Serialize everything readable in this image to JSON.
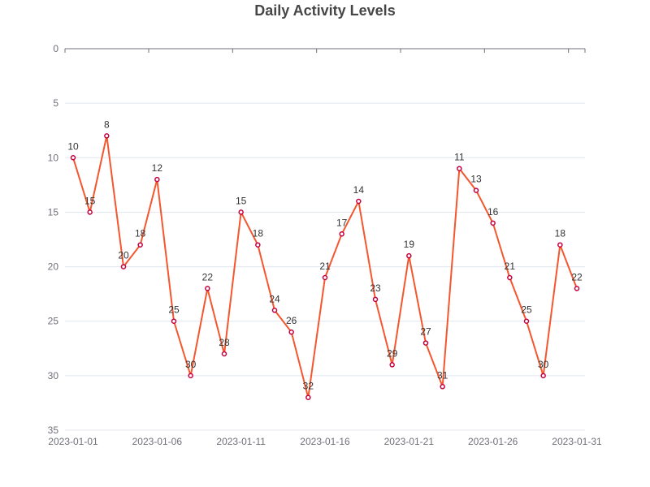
{
  "chart_data": {
    "type": "line",
    "title": "Daily Activity Levels",
    "xlabel": "",
    "ylabel": "",
    "x": [
      "2023-01-01",
      "2023-01-02",
      "2023-01-03",
      "2023-01-04",
      "2023-01-05",
      "2023-01-06",
      "2023-01-07",
      "2023-01-08",
      "2023-01-09",
      "2023-01-10",
      "2023-01-11",
      "2023-01-12",
      "2023-01-13",
      "2023-01-14",
      "2023-01-15",
      "2023-01-16",
      "2023-01-17",
      "2023-01-18",
      "2023-01-19",
      "2023-01-20",
      "2023-01-21",
      "2023-01-22",
      "2023-01-23",
      "2023-01-24",
      "2023-01-25",
      "2023-01-26",
      "2023-01-27",
      "2023-01-28",
      "2023-01-29",
      "2023-01-30",
      "2023-01-31"
    ],
    "x_tick_labels": [
      "2023-01-01",
      "2023-01-06",
      "2023-01-11",
      "2023-01-16",
      "2023-01-21",
      "2023-01-26",
      "2023-01-31"
    ],
    "y_tick_labels": [
      "0",
      "5",
      "10",
      "15",
      "20",
      "25",
      "30",
      "35"
    ],
    "values": [
      10,
      15,
      8,
      20,
      18,
      12,
      25,
      30,
      22,
      28,
      15,
      18,
      24,
      26,
      32,
      21,
      17,
      14,
      23,
      29,
      19,
      27,
      31,
      11,
      13,
      16,
      21,
      25,
      30,
      18,
      22
    ],
    "ylim": [
      0,
      35
    ],
    "y_inverted": true,
    "grid": true,
    "colors": {
      "line": "#f4562e",
      "point_stroke": "#c8003e",
      "point_fill": "#ffffff"
    }
  }
}
